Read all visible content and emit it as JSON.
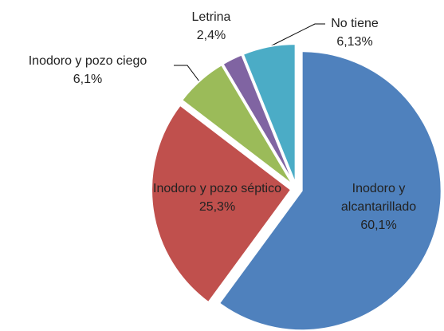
{
  "chart_data": {
    "type": "pie",
    "categories": [
      "Inodoro y alcantarillado",
      "Inodoro y pozo séptico",
      "Inodoro y pozo ciego",
      "Letrina",
      "No tiene"
    ],
    "values": [
      60.1,
      25.3,
      6.1,
      2.4,
      6.13
    ],
    "value_labels": [
      "60,1%",
      "25,3%",
      "6,1%",
      "2,4%",
      "6,13%"
    ],
    "colors": [
      "#4f81bd",
      "#c0504d",
      "#9bbb59",
      "#8064a2",
      "#4bacc6"
    ]
  }
}
